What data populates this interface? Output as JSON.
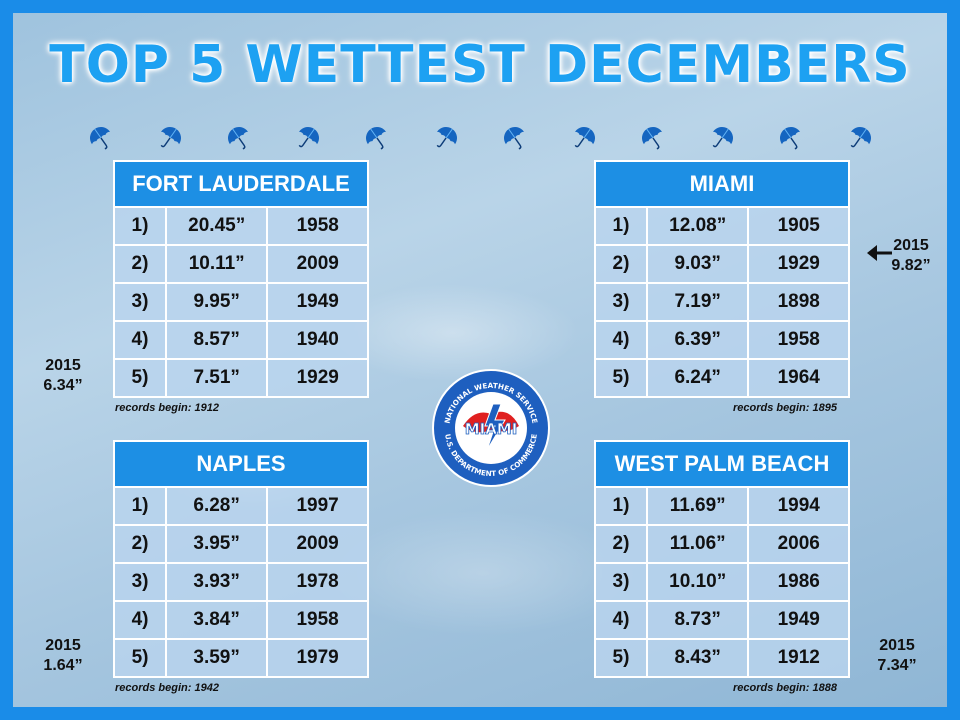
{
  "title": "TOP 5 WETTEST DECEMBERS",
  "colors": {
    "accent": "#1d8fe4",
    "border": "#1a8ce8",
    "title": "#1da1f2"
  },
  "icons": {
    "decoration": "umbrella-icon",
    "logo": "nws-miami-logo",
    "pointer": "arrow-left-icon"
  },
  "logo": {
    "ring_top": "NATIONAL WEATHER SERVICE",
    "ring_bottom": "U.S. DEPARTMENT OF COMMERCE",
    "center": "MIAMI"
  },
  "tables": {
    "fort_lauderdale": {
      "name": "FORT LAUDERDALE",
      "rows": [
        {
          "rank": "1)",
          "rain": "20.45”",
          "year": "1958"
        },
        {
          "rank": "2)",
          "rain": "10.11”",
          "year": "2009"
        },
        {
          "rank": "3)",
          "rain": "9.95”",
          "year": "1949"
        },
        {
          "rank": "4)",
          "rain": "8.57”",
          "year": "1940"
        },
        {
          "rank": "5)",
          "rain": "7.51”",
          "year": "1929"
        }
      ],
      "note": "records begin: 1912",
      "y2015_label": "2015",
      "y2015_value": "6.34”"
    },
    "miami": {
      "name": "MIAMI",
      "rows": [
        {
          "rank": "1)",
          "rain": "12.08”",
          "year": "1905"
        },
        {
          "rank": "2)",
          "rain": "9.03”",
          "year": "1929"
        },
        {
          "rank": "3)",
          "rain": "7.19”",
          "year": "1898"
        },
        {
          "rank": "4)",
          "rain": "6.39”",
          "year": "1958"
        },
        {
          "rank": "5)",
          "rain": "6.24”",
          "year": "1964"
        }
      ],
      "note": "records begin: 1895",
      "y2015_label": "2015",
      "y2015_value": "9.82”"
    },
    "naples": {
      "name": "NAPLES",
      "rows": [
        {
          "rank": "1)",
          "rain": "6.28”",
          "year": "1997"
        },
        {
          "rank": "2)",
          "rain": "3.95”",
          "year": "2009"
        },
        {
          "rank": "3)",
          "rain": "3.93”",
          "year": "1978"
        },
        {
          "rank": "4)",
          "rain": "3.84”",
          "year": "1958"
        },
        {
          "rank": "5)",
          "rain": "3.59”",
          "year": "1979"
        }
      ],
      "note": "records begin: 1942",
      "y2015_label": "2015",
      "y2015_value": "1.64”"
    },
    "west_palm_beach": {
      "name": "WEST PALM BEACH",
      "rows": [
        {
          "rank": "1)",
          "rain": "11.69”",
          "year": "1994"
        },
        {
          "rank": "2)",
          "rain": "11.06”",
          "year": "2006"
        },
        {
          "rank": "3)",
          "rain": "10.10”",
          "year": "1986"
        },
        {
          "rank": "4)",
          "rain": "8.73”",
          "year": "1949"
        },
        {
          "rank": "5)",
          "rain": "8.43”",
          "year": "1912"
        }
      ],
      "note": "records begin: 1888",
      "y2015_label": "2015",
      "y2015_value": "7.34”"
    }
  }
}
